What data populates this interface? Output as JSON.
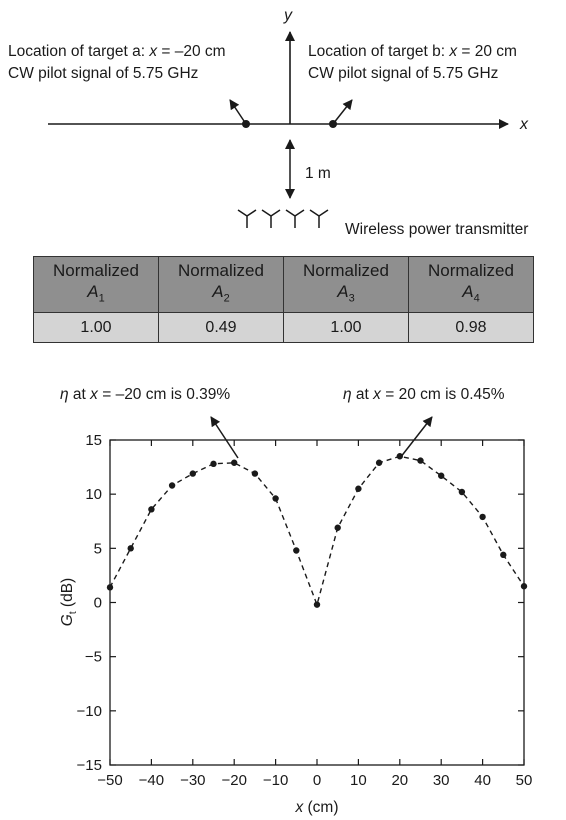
{
  "diagram": {
    "x_axis_label": "x",
    "y_axis_label": "y",
    "target_a": {
      "line1_prefix": "Location of target a: ",
      "line1_var": "x",
      "line1_value": " = –20 cm",
      "line2": "CW pilot signal of 5.75 GHz"
    },
    "target_b": {
      "line1_prefix": "Location of target b: ",
      "line1_var": "x",
      "line1_value": " = 20 cm",
      "line2": "CW pilot signal of 5.75 GHz"
    },
    "distance_label": "1 m",
    "transmitter_label": "Wireless power transmitter"
  },
  "table": {
    "header_word": "Normalized",
    "columns": [
      {
        "symbol": "A",
        "subscript": "1",
        "value": "1.00"
      },
      {
        "symbol": "A",
        "subscript": "2",
        "value": "0.49"
      },
      {
        "symbol": "A",
        "subscript": "3",
        "value": "1.00"
      },
      {
        "symbol": "A",
        "subscript": "4",
        "value": "0.98"
      }
    ]
  },
  "chart_data": {
    "type": "line",
    "x": [
      -50,
      -45,
      -40,
      -35,
      -30,
      -25,
      -20,
      -15,
      -10,
      -5,
      0,
      5,
      10,
      15,
      20,
      25,
      30,
      35,
      40,
      45,
      50
    ],
    "y": [
      1.4,
      5.0,
      8.6,
      10.8,
      11.9,
      12.8,
      12.9,
      11.9,
      9.6,
      4.8,
      -0.2,
      6.9,
      10.5,
      12.9,
      13.5,
      13.1,
      11.7,
      10.2,
      7.9,
      4.4,
      1.5
    ],
    "line_style": "dashed",
    "marker": "filled-circle",
    "xlabel": {
      "var": "x",
      "unit": " (cm)"
    },
    "ylabel": {
      "var": "G",
      "sub": "t",
      "unit": " (dB)"
    },
    "xlim": [
      -50,
      50
    ],
    "ylim": [
      -15,
      15
    ],
    "xticks": [
      -50,
      -40,
      -30,
      -20,
      -10,
      0,
      10,
      20,
      30,
      40,
      50
    ],
    "yticks": [
      15,
      10,
      5,
      0,
      -5,
      -10,
      -15
    ],
    "xtick_labels": [
      "−50",
      "−40",
      "−30",
      "−20",
      "−10",
      "0",
      "10",
      "20",
      "30",
      "40",
      "50"
    ],
    "ytick_labels": [
      "15",
      "10",
      "5",
      "0",
      "−5",
      "−10",
      "−15"
    ],
    "grid": false,
    "annotations": [
      {
        "var": "η",
        "text": " at ",
        "var2": "x",
        "text2": " = –20 cm is 0.39%",
        "points_to_x": -20
      },
      {
        "var": "η",
        "text": " at ",
        "var2": "x",
        "text2": " = 20 cm is 0.45%",
        "points_to_x": 20
      }
    ]
  }
}
